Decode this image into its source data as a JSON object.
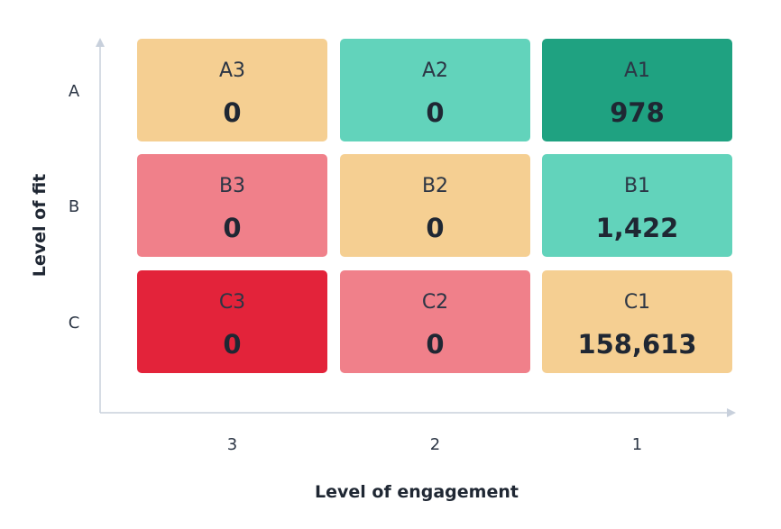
{
  "chart_data": {
    "type": "heatmap",
    "title": "",
    "xlabel": "Level of engagement",
    "ylabel": "Level of fit",
    "x_categories": [
      "3",
      "2",
      "1"
    ],
    "y_categories": [
      "A",
      "B",
      "C"
    ],
    "cells": [
      {
        "row": "A",
        "col": "3",
        "code": "A3",
        "value": "0",
        "color": "#F5CF92"
      },
      {
        "row": "A",
        "col": "2",
        "code": "A2",
        "value": "0",
        "color": "#62D3BB"
      },
      {
        "row": "A",
        "col": "1",
        "code": "A1",
        "value": "978",
        "color": "#1FA281"
      },
      {
        "row": "B",
        "col": "3",
        "code": "B3",
        "value": "0",
        "color": "#F0808A"
      },
      {
        "row": "B",
        "col": "2",
        "code": "B2",
        "value": "0",
        "color": "#F5CF92"
      },
      {
        "row": "B",
        "col": "1",
        "code": "B1",
        "value": "1,422",
        "color": "#62D3BB"
      },
      {
        "row": "C",
        "col": "3",
        "code": "C3",
        "value": "0",
        "color": "#E3233A"
      },
      {
        "row": "C",
        "col": "2",
        "code": "C2",
        "value": "0",
        "color": "#F0808A"
      },
      {
        "row": "C",
        "col": "1",
        "code": "C1",
        "value": "158,613",
        "color": "#F5CF92"
      }
    ],
    "axis_color": "#C8D0DC"
  }
}
